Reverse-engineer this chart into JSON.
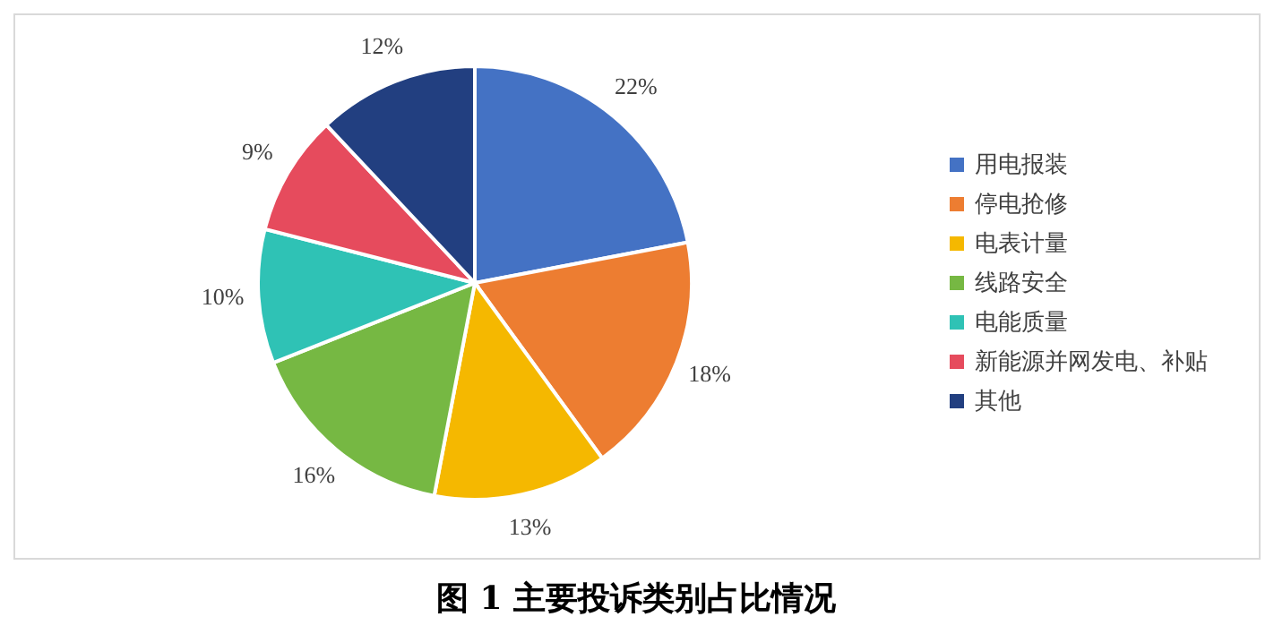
{
  "chart_data": {
    "type": "pie",
    "title": "图 1 主要投诉类别占比情况",
    "categories": [
      "用电报装",
      "停电抢修",
      "电表计量",
      "线路安全",
      "电能质量",
      "新能源并网发电、补贴",
      "其他"
    ],
    "values": [
      22,
      18,
      13,
      16,
      10,
      9,
      12
    ],
    "colors": [
      "#4472c4",
      "#ed7d31",
      "#f5b800",
      "#76b843",
      "#2fc2b5",
      "#e64b5d",
      "#223f80"
    ],
    "value_labels": [
      "22%",
      "18%",
      "13%",
      "16%",
      "10%",
      "9%",
      "12%"
    ],
    "legend": "right"
  }
}
